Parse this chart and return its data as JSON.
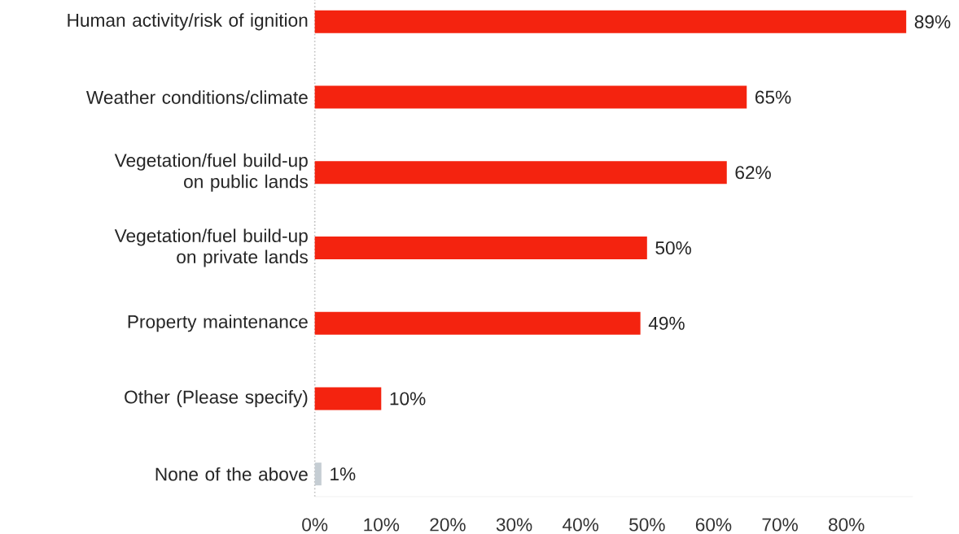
{
  "chart_data": {
    "type": "bar",
    "orientation": "horizontal",
    "categories": [
      "Human activity/risk of ignition",
      "Weather conditions/climate",
      "Vegetation/fuel build-up on public lands",
      "Vegetation/fuel build-up on private lands",
      "Property maintenance",
      "Other (Please specify)",
      "None of the above"
    ],
    "values": [
      89,
      65,
      62,
      50,
      49,
      10,
      1
    ],
    "colors": [
      "#f4230f",
      "#f4230f",
      "#f4230f",
      "#f4230f",
      "#f4230f",
      "#f4230f",
      "#c5cdd3"
    ],
    "value_labels": [
      "89%",
      "65%",
      "62%",
      "50%",
      "49%",
      "10%",
      "1%"
    ],
    "xlim": [
      0,
      90
    ],
    "xticks": [
      {
        "value": 0,
        "label": "0%"
      },
      {
        "value": 10,
        "label": "10%"
      },
      {
        "value": 20,
        "label": "20%"
      },
      {
        "value": 30,
        "label": "30%"
      },
      {
        "value": 40,
        "label": "40%"
      },
      {
        "value": 50,
        "label": "50%"
      },
      {
        "value": 60,
        "label": "60%"
      },
      {
        "value": 70,
        "label": "70%"
      },
      {
        "value": 80,
        "label": "80%"
      }
    ]
  }
}
